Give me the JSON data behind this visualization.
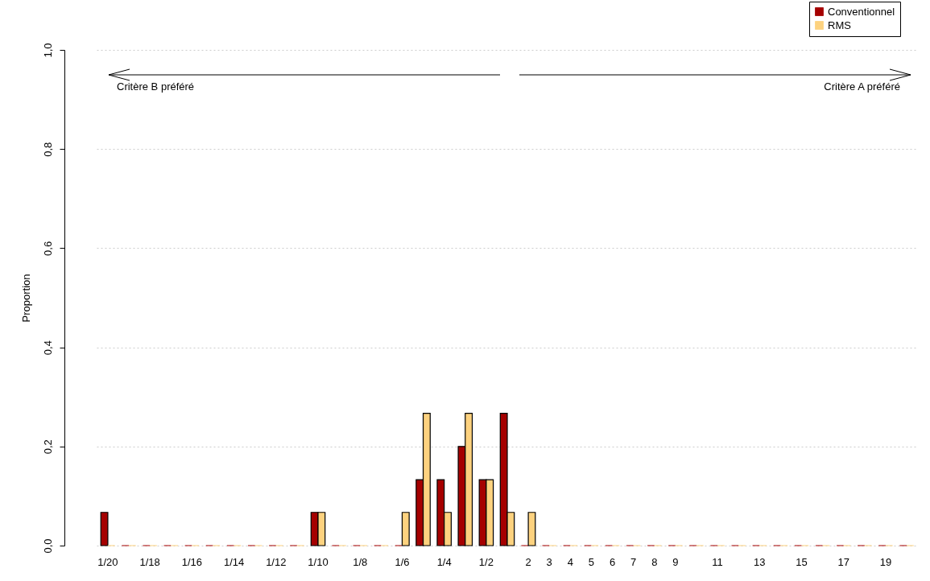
{
  "chart_data": {
    "type": "bar",
    "ylabel": "Proportion",
    "categories": [
      "1/20",
      null,
      "1/18",
      null,
      "1/16",
      null,
      "1/14",
      null,
      "1/12",
      null,
      "1/10",
      null,
      "1/8",
      null,
      "1/6",
      null,
      "1/4",
      null,
      "1/2",
      null,
      "2",
      "3",
      "4",
      "5",
      "6",
      "7",
      "8",
      "9",
      null,
      "11",
      null,
      "13",
      null,
      "15",
      null,
      "17",
      null,
      "19",
      null
    ],
    "series": [
      {
        "name": "Conventionnel",
        "color": "#a50000",
        "values": [
          0.067,
          0,
          0,
          0,
          0,
          0,
          0,
          0,
          0,
          0,
          0.067,
          0,
          0,
          0,
          0,
          0.133,
          0.133,
          0.2,
          0.133,
          0.267,
          0,
          0,
          0,
          0,
          0,
          0,
          0,
          0,
          0,
          0,
          0,
          0,
          0,
          0,
          0,
          0,
          0,
          0,
          0
        ]
      },
      {
        "name": "RMS",
        "color": "#fdd27f",
        "values": [
          0,
          0,
          0,
          0,
          0,
          0,
          0,
          0,
          0,
          0,
          0.067,
          0,
          0,
          0,
          0.067,
          0.267,
          0.067,
          0.267,
          0.133,
          0.067,
          0.067,
          0,
          0,
          0,
          0,
          0,
          0,
          0,
          0,
          0,
          0,
          0,
          0,
          0,
          0,
          0,
          0,
          0,
          0
        ]
      }
    ],
    "ylim": [
      0,
      1
    ],
    "yticks": [
      {
        "value": 0,
        "label": "0,0"
      },
      {
        "value": 0.2,
        "label": "0,2"
      },
      {
        "value": 0.4,
        "label": "0,4"
      },
      {
        "value": 0.6,
        "label": "0,6"
      },
      {
        "value": 0.8,
        "label": "0,8"
      },
      {
        "value": 1,
        "label": "1,0"
      }
    ],
    "grid": "y",
    "legend": "top right",
    "annotations": [
      "Critère B préféré",
      "Critère A préféré"
    ]
  }
}
